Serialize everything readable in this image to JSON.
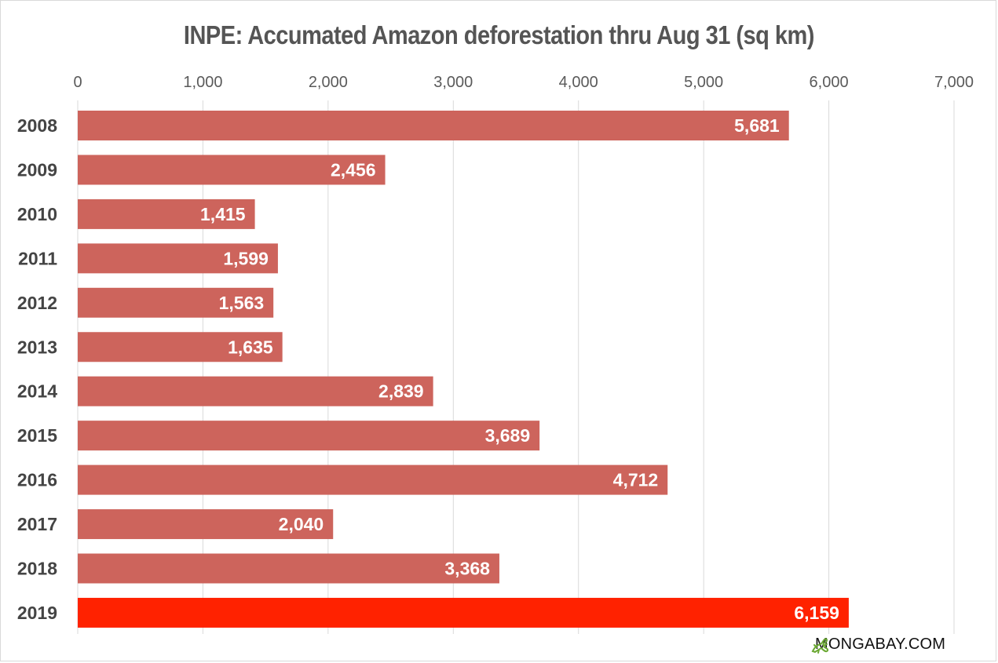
{
  "chart_data": {
    "type": "bar",
    "orientation": "horizontal",
    "title": "INPE: Accumated Amazon deforestation thru Aug 31 (sq km)",
    "categories": [
      "2008",
      "2009",
      "2010",
      "2011",
      "2012",
      "2013",
      "2014",
      "2015",
      "2016",
      "2017",
      "2018",
      "2019"
    ],
    "values": [
      5681,
      2456,
      1415,
      1599,
      1563,
      1635,
      2839,
      3689,
      4712,
      2040,
      3368,
      6159
    ],
    "data_labels": [
      "5,681",
      "2,456",
      "1,415",
      "1,599",
      "1,563",
      "1,635",
      "2,839",
      "3,689",
      "4,712",
      "2,040",
      "3,368",
      "6,159"
    ],
    "xlim": [
      0,
      7000
    ],
    "x_ticks": [
      0,
      1000,
      2000,
      3000,
      4000,
      5000,
      6000,
      7000
    ],
    "x_tick_labels": [
      "0",
      "1,000",
      "2,000",
      "3,000",
      "4,000",
      "5,000",
      "6,000",
      "7,000"
    ],
    "x_axis_position": "top",
    "grid": true,
    "colors": {
      "bar": "#cd645c",
      "highlight_bar": "#ff2200",
      "highlight_category": "2019",
      "grid": "#d9d9d9",
      "title": "#555555"
    }
  },
  "branding": {
    "text": "MONGABAY.COM",
    "icon": "mongabay-lizard-icon",
    "icon_color": "#6aa832"
  }
}
